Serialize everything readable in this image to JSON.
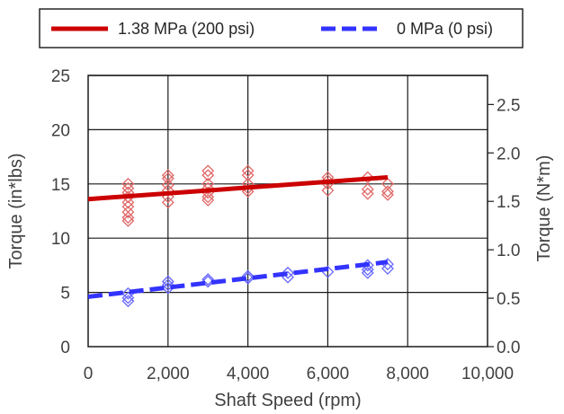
{
  "chart_data": {
    "type": "scatter",
    "xlabel": "Shaft Speed (rpm)",
    "ylabel": "Torque (in*lbs)",
    "y2label": "Torque (N*m)",
    "xlim": [
      0,
      10000
    ],
    "ylim": [
      0,
      25
    ],
    "y2lim": [
      0,
      2.8
    ],
    "x_ticks": [
      "0",
      "2,000",
      "4,000",
      "6,000",
      "8,000",
      "10,000"
    ],
    "x_tick_values": [
      0,
      2000,
      4000,
      6000,
      8000,
      10000
    ],
    "y_ticks": [
      "0",
      "5",
      "10",
      "15",
      "20",
      "25"
    ],
    "y_tick_values": [
      0,
      5,
      10,
      15,
      20,
      25
    ],
    "y2_ticks": [
      "0.0",
      "0.5",
      "1.0",
      "1.5",
      "2.0",
      "2.5"
    ],
    "y2_tick_values": [
      0,
      0.5,
      1.0,
      1.5,
      2.0,
      2.5
    ],
    "grid": true,
    "legend_position": "top",
    "series": [
      {
        "name": "1.38 MPa (200 psi)",
        "color": "#cc0000",
        "marker_color": "#e06666",
        "line_style": "solid",
        "trend": [
          [
            0,
            13.6
          ],
          [
            7500,
            15.6
          ]
        ],
        "points": [
          [
            1000,
            15.0
          ],
          [
            1000,
            14.6
          ],
          [
            1000,
            14.2
          ],
          [
            1000,
            13.8
          ],
          [
            1000,
            13.3
          ],
          [
            1000,
            12.9
          ],
          [
            1000,
            12.4
          ],
          [
            1000,
            11.9
          ],
          [
            1000,
            11.6
          ],
          [
            2000,
            15.8
          ],
          [
            2000,
            15.5
          ],
          [
            2000,
            14.9
          ],
          [
            2000,
            14.4
          ],
          [
            2000,
            13.8
          ],
          [
            2000,
            13.3
          ],
          [
            3000,
            16.2
          ],
          [
            3000,
            15.8
          ],
          [
            3000,
            15.0
          ],
          [
            3000,
            14.6
          ],
          [
            3000,
            14.2
          ],
          [
            3000,
            13.8
          ],
          [
            3000,
            13.5
          ],
          [
            4000,
            16.2
          ],
          [
            4000,
            15.8
          ],
          [
            4000,
            15.0
          ],
          [
            4000,
            14.6
          ],
          [
            4000,
            14.3
          ],
          [
            6000,
            15.6
          ],
          [
            6000,
            15.3
          ],
          [
            6000,
            15.0
          ],
          [
            6000,
            14.4
          ],
          [
            7000,
            15.6
          ],
          [
            7000,
            14.5
          ],
          [
            7000,
            14.1
          ],
          [
            7500,
            15.0
          ],
          [
            7500,
            14.3
          ],
          [
            7500,
            14.0
          ]
        ]
      },
      {
        "name": "0 MPa (0 psi)",
        "color": "#3333ff",
        "marker_color": "#6666ff",
        "line_style": "dashed",
        "trend": [
          [
            0,
            4.6
          ],
          [
            7500,
            7.8
          ]
        ],
        "points": [
          [
            1000,
            4.9
          ],
          [
            1000,
            4.5
          ],
          [
            1000,
            4.2
          ],
          [
            2000,
            6.0
          ],
          [
            2000,
            5.7
          ],
          [
            2000,
            5.4
          ],
          [
            3000,
            6.2
          ],
          [
            3000,
            6.0
          ],
          [
            4000,
            6.5
          ],
          [
            4000,
            6.3
          ],
          [
            5000,
            6.8
          ],
          [
            5000,
            6.4
          ],
          [
            6000,
            6.9
          ],
          [
            7000,
            7.5
          ],
          [
            7000,
            7.1
          ],
          [
            7000,
            6.8
          ],
          [
            7500,
            7.6
          ],
          [
            7500,
            7.2
          ]
        ]
      }
    ]
  }
}
